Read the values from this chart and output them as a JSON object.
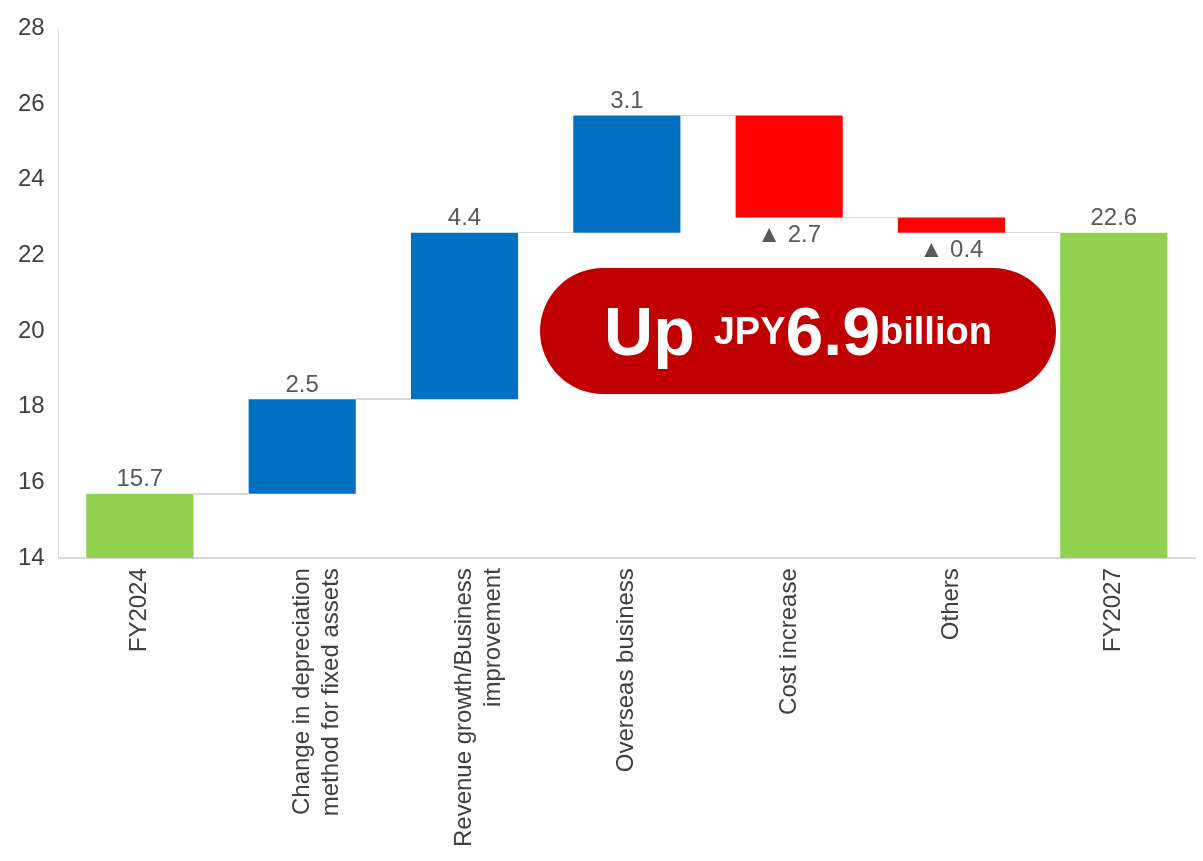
{
  "chart_data": {
    "type": "bar",
    "categories": [
      "FY2024",
      "Change in depreciation method for fixed assets",
      "Revenue growth/Business improvement",
      "Overseas business",
      "Cost increase",
      "Others",
      "FY2027"
    ],
    "values": [
      15.7,
      2.5,
      4.4,
      3.1,
      -2.7,
      -0.4,
      22.6
    ],
    "base": [
      null,
      15.7,
      18.2,
      22.6,
      25.7,
      23.0,
      null
    ],
    "colors": [
      "#92d050",
      "#0070c0",
      "#0070c0",
      "#0070c0",
      "#ff0000",
      "#ff0000",
      "#92d050"
    ],
    "value_labels": [
      "15.7",
      "2.5",
      "4.4",
      "3.1",
      "▲ 2.7",
      "▲ 0.4",
      "22.6"
    ],
    "ylim": [
      14,
      28
    ],
    "yticks": [
      14,
      16,
      18,
      20,
      22,
      24,
      26,
      28
    ],
    "grid": false,
    "legend": false,
    "annotations": [
      "Up JPY6.9billion"
    ]
  }
}
